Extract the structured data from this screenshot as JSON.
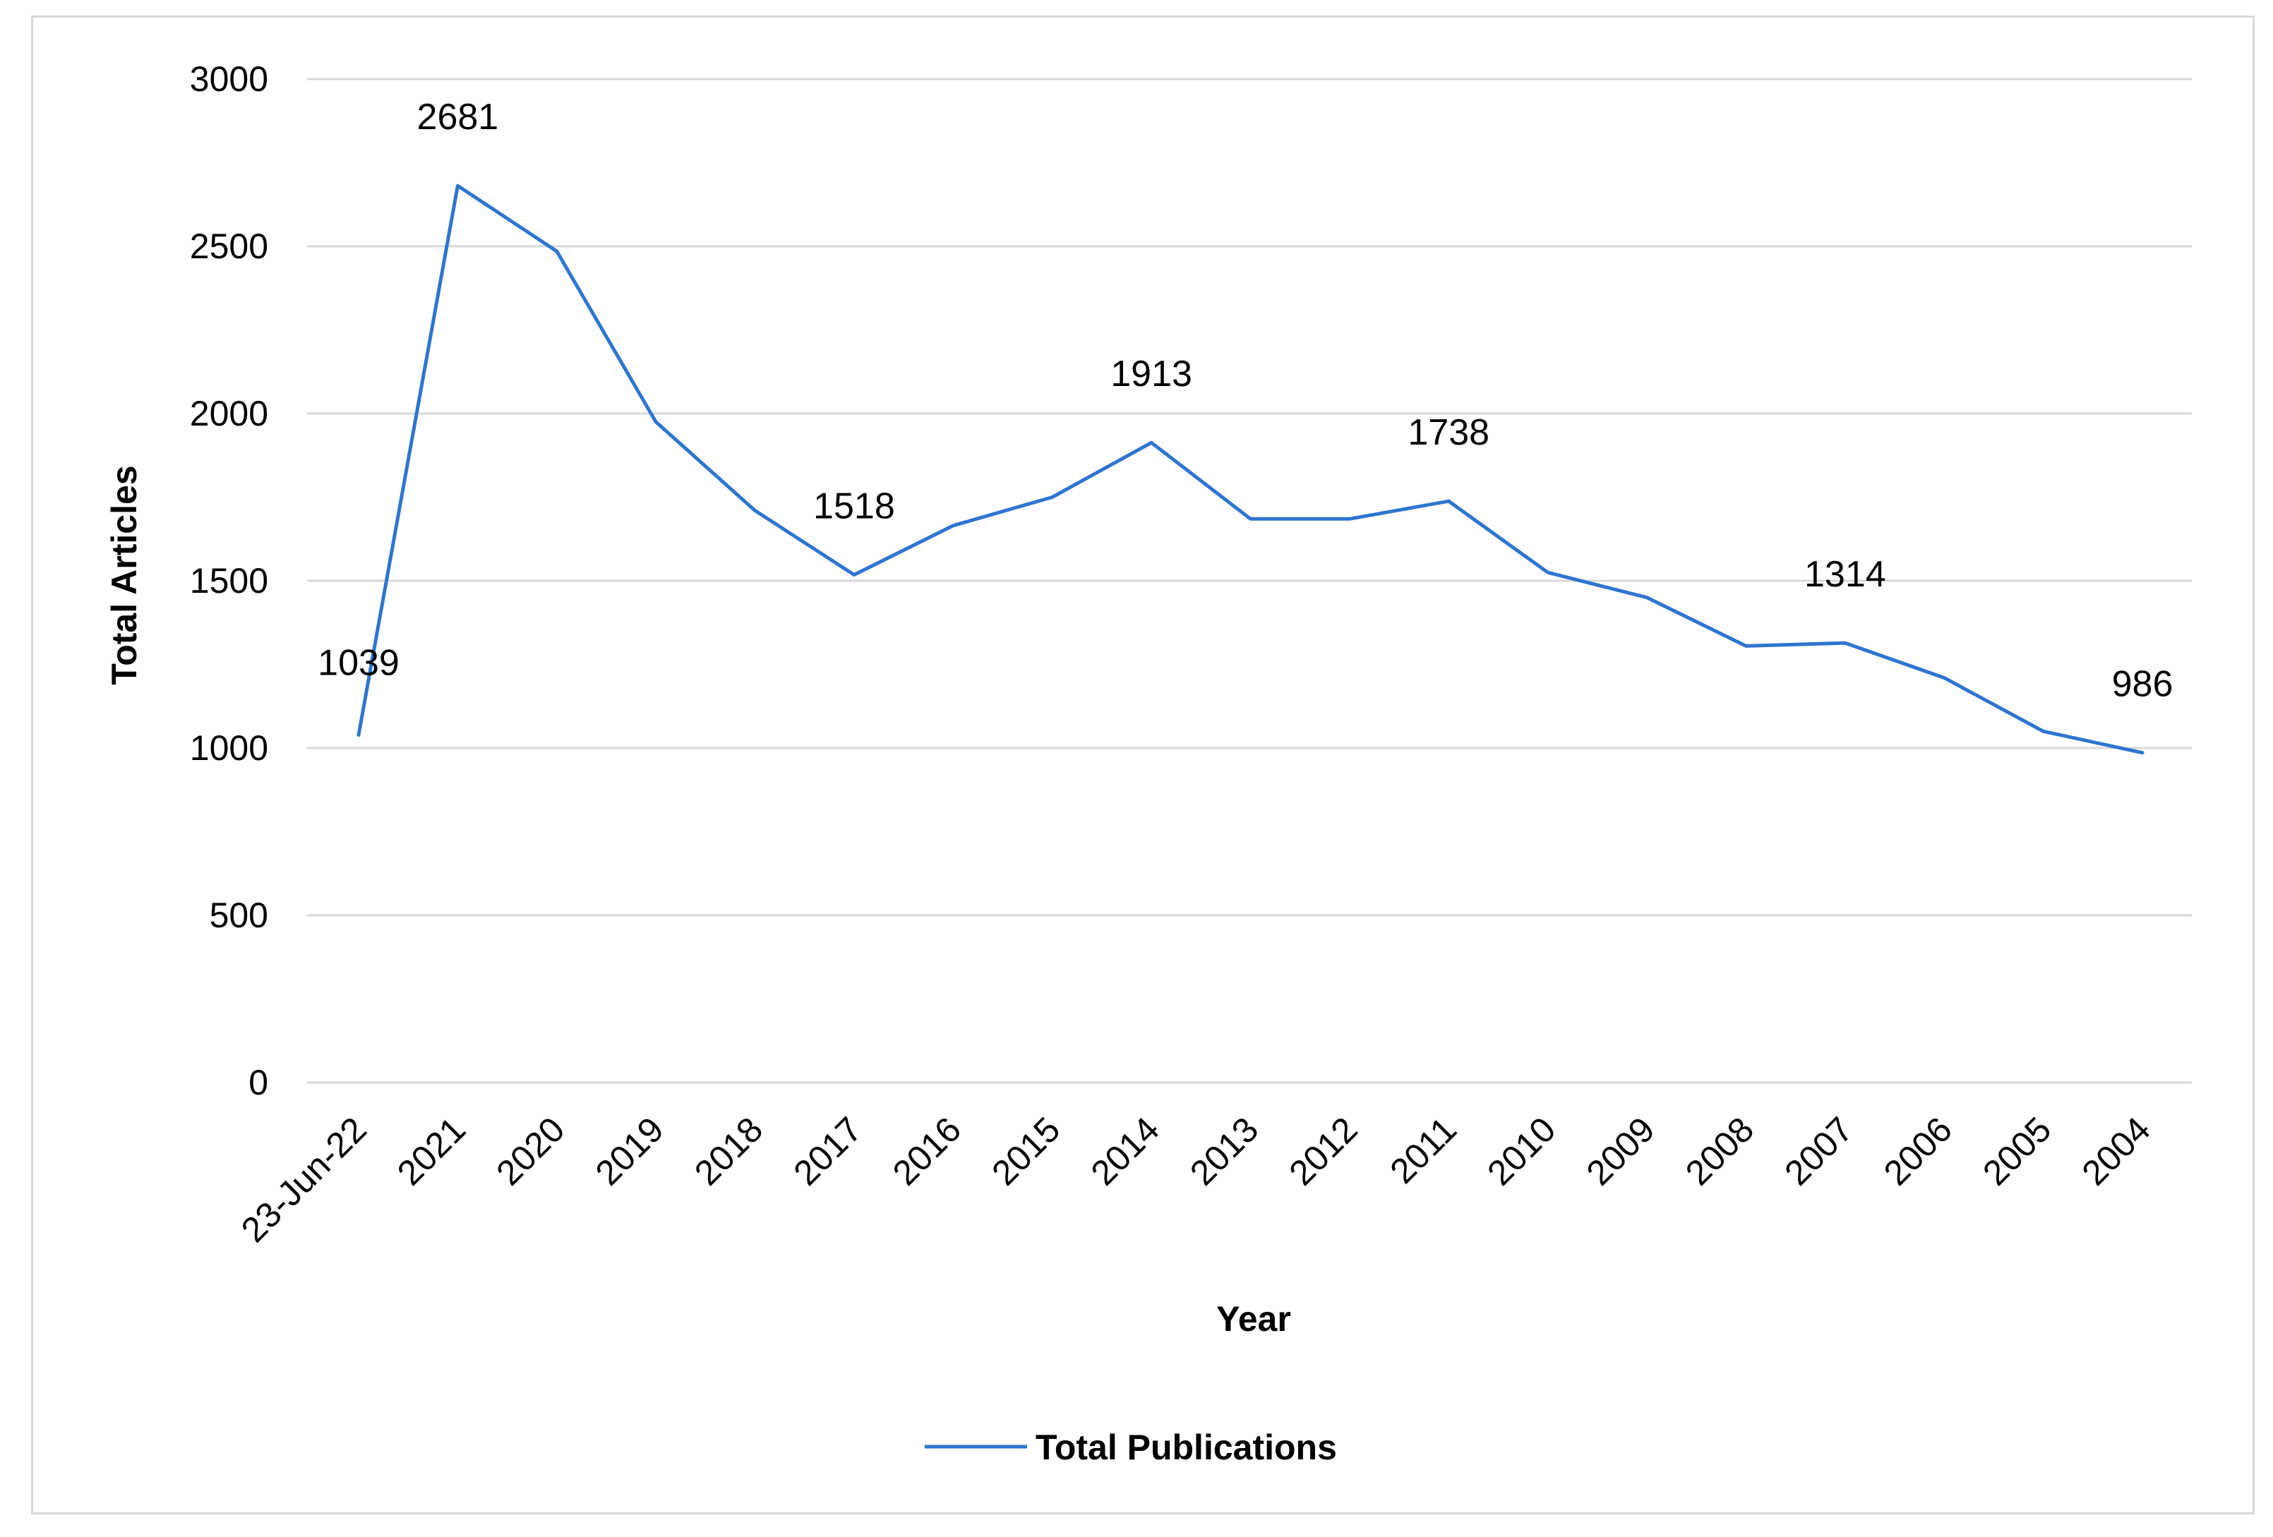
{
  "chart_data": {
    "type": "line",
    "title": "",
    "xlabel": "Year",
    "ylabel": "Total Articles",
    "ylim": [
      0,
      3000
    ],
    "yticks": [
      0,
      500,
      1000,
      1500,
      2000,
      2500,
      3000
    ],
    "grid": true,
    "legend_position": "bottom",
    "categories": [
      "23-Jun-22",
      "2021",
      "2020",
      "2019",
      "2018",
      "2017",
      "2016",
      "2015",
      "2014",
      "2013",
      "2012",
      "2011",
      "2010",
      "2009",
      "2008",
      "2007",
      "2006",
      "2005",
      "2004"
    ],
    "series": [
      {
        "name": "Total Publications",
        "color": "#2e75d0",
        "values": [
          1039,
          2681,
          2485,
          1975,
          1710,
          1518,
          1665,
          1750,
          1913,
          1685,
          1685,
          1738,
          1525,
          1450,
          1305,
          1314,
          1210,
          1050,
          986
        ]
      }
    ],
    "data_labels": [
      {
        "category": "23-Jun-22",
        "text": "1039"
      },
      {
        "category": "2021",
        "text": "2681"
      },
      {
        "category": "2017",
        "text": "1518"
      },
      {
        "category": "2014",
        "text": "1913"
      },
      {
        "category": "2011",
        "text": "1738"
      },
      {
        "category": "2007",
        "text": "1314"
      },
      {
        "category": "2004",
        "text": "986"
      }
    ]
  }
}
